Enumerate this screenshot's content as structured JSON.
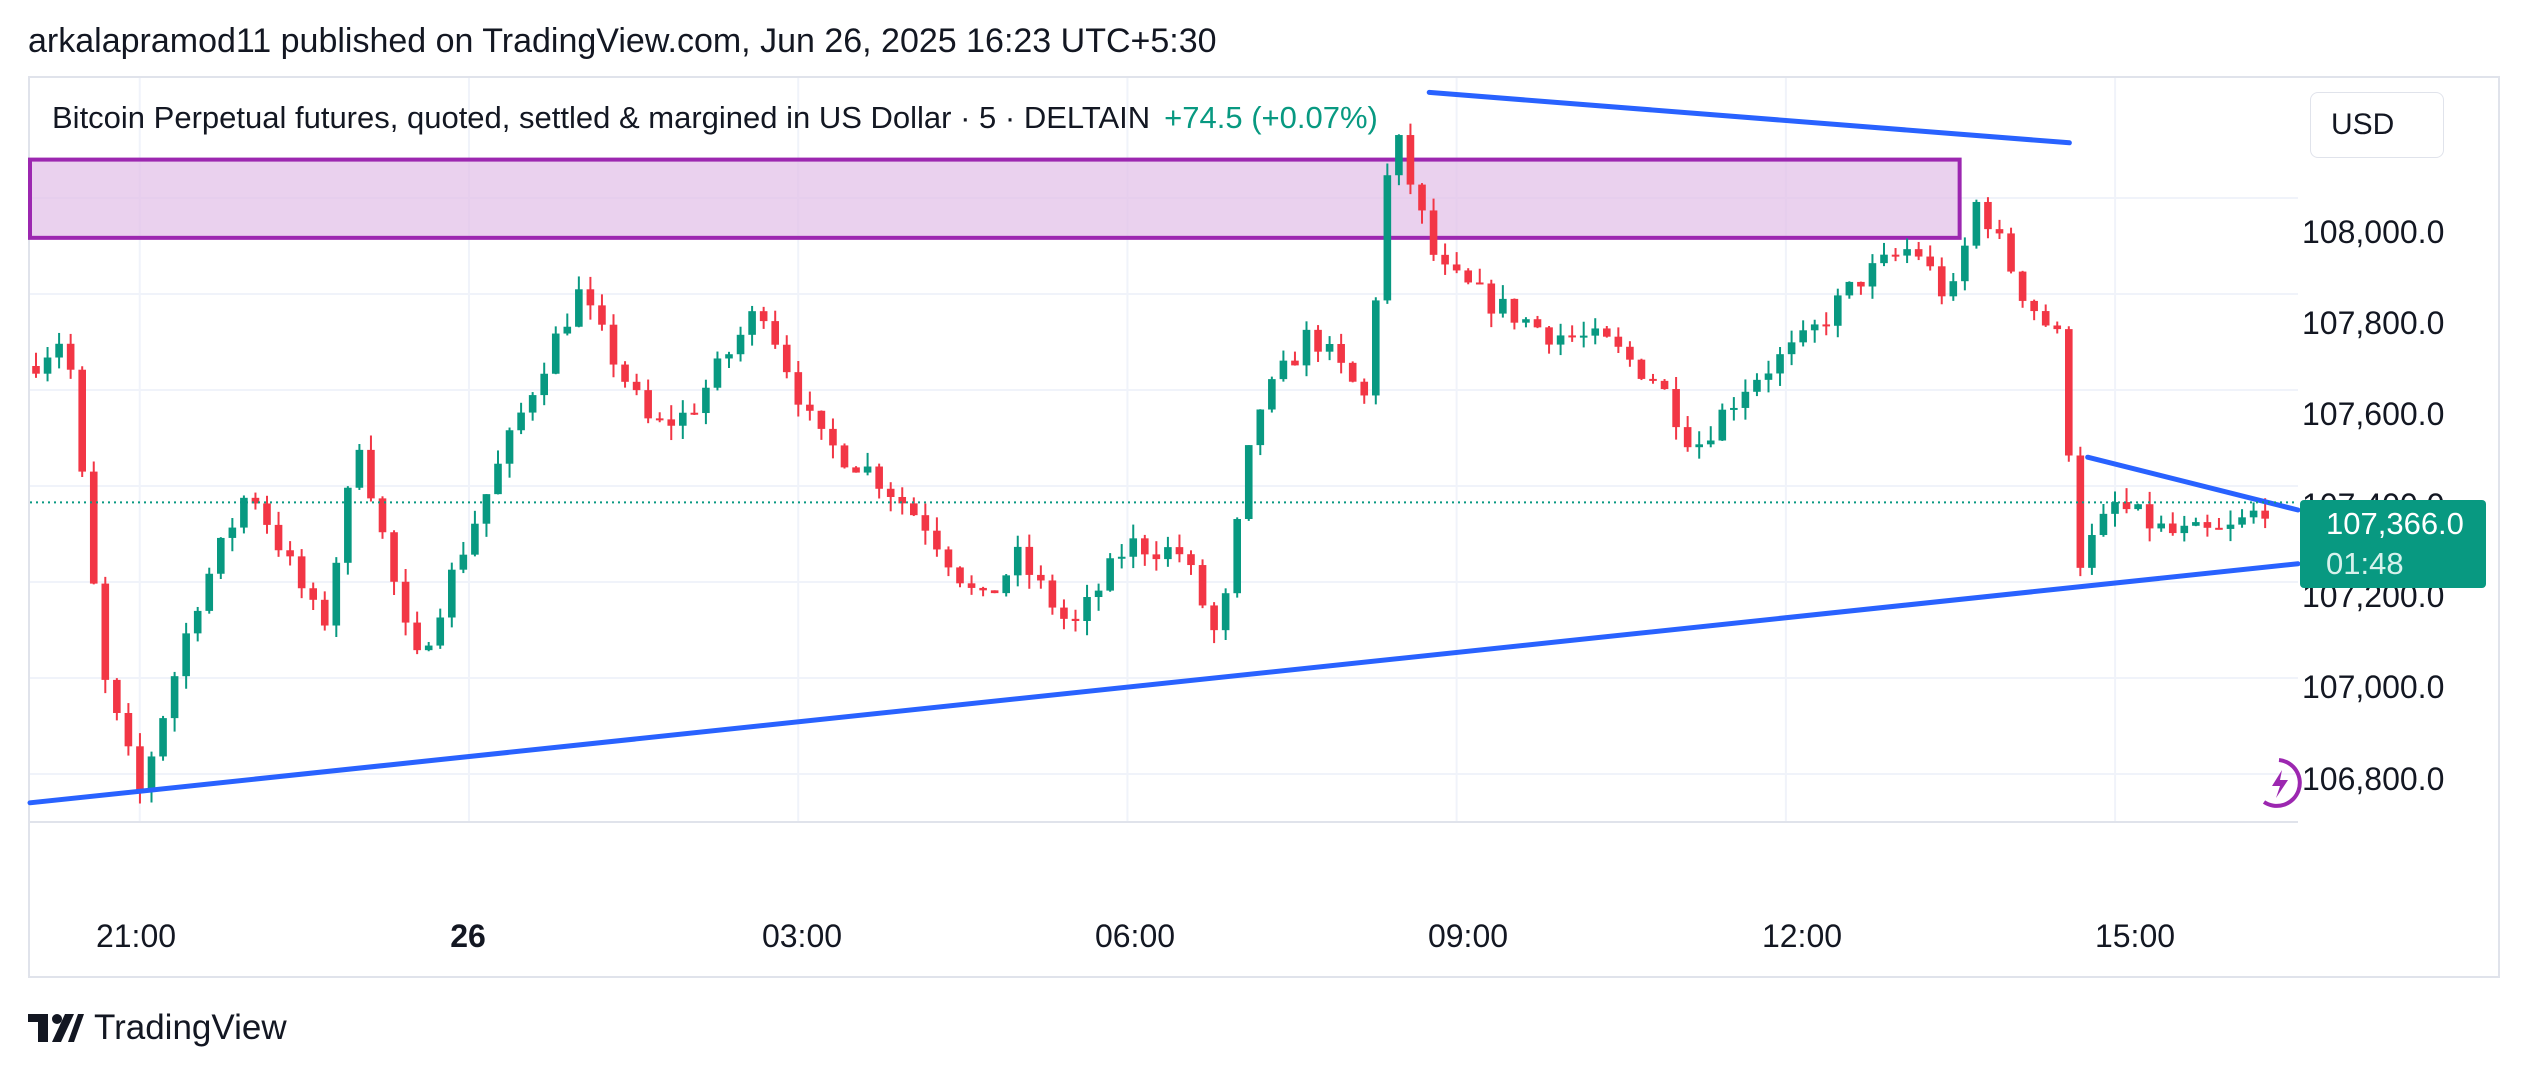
{
  "header": {
    "publisher_text": "arkalapramod11 published on TradingView.com, Jun 26, 2025 16:23 UTC+5:30"
  },
  "legend": {
    "instrument": "Bitcoin Perpetual futures, quoted, settled & margined in US Dollar · 5 · DELTAIN",
    "change": "+74.5 (+0.07%)"
  },
  "currency_button": "USD",
  "price_axis": [
    "108,000.0",
    "107,800.0",
    "107,600.0",
    "107,400.0",
    "107,200.0",
    "107,000.0",
    "106,800.0"
  ],
  "time_axis": [
    {
      "label": "21:00",
      "bold": false
    },
    {
      "label": "26",
      "bold": true
    },
    {
      "label": "03:00",
      "bold": false
    },
    {
      "label": "06:00",
      "bold": false
    },
    {
      "label": "09:00",
      "bold": false
    },
    {
      "label": "12:00",
      "bold": false
    },
    {
      "label": "15:00",
      "bold": false
    }
  ],
  "last_price": {
    "value": "107,366.0",
    "countdown": "01:48"
  },
  "brand": {
    "name": "TradingView"
  },
  "colors": {
    "up": "#089981",
    "down": "#f23645",
    "trendline": "#2962ff",
    "zone_fill": "#e1bee7",
    "zone_border": "#9c27b0",
    "grid": "#f0f3fa",
    "text": "#131722"
  },
  "chart_data": {
    "type": "candlestick",
    "timeframe_minutes": 5,
    "y_range": [
      106700,
      108250
    ],
    "x_range": [
      "2025-06-25 20:00",
      "2025-06-26 16:40"
    ],
    "candles_hourly_path": [
      {
        "t": "20:00",
        "price": 107650
      },
      {
        "t": "20:20",
        "price": 107720
      },
      {
        "t": "20:40",
        "price": 107000
      },
      {
        "t": "21:00",
        "price": 106760
      },
      {
        "t": "21:30",
        "price": 107150
      },
      {
        "t": "22:00",
        "price": 107400
      },
      {
        "t": "22:40",
        "price": 107100
      },
      {
        "t": "23:00",
        "price": 107500
      },
      {
        "t": "23:30",
        "price": 107020
      },
      {
        "t": "00:00",
        "price": 107300
      },
      {
        "t": "00:40",
        "price": 107650
      },
      {
        "t": "01:00",
        "price": 107800
      },
      {
        "t": "01:40",
        "price": 107520
      },
      {
        "t": "02:00",
        "price": 107550
      },
      {
        "t": "02:40",
        "price": 107780
      },
      {
        "t": "03:10",
        "price": 107500
      },
      {
        "t": "03:40",
        "price": 107430
      },
      {
        "t": "04:10",
        "price": 107320
      },
      {
        "t": "04:40",
        "price": 107150
      },
      {
        "t": "05:00",
        "price": 107250
      },
      {
        "t": "05:30",
        "price": 107100
      },
      {
        "t": "06:00",
        "price": 107280
      },
      {
        "t": "06:30",
        "price": 107260
      },
      {
        "t": "06:50",
        "price": 107070
      },
      {
        "t": "07:10",
        "price": 107550
      },
      {
        "t": "07:40",
        "price": 107720
      },
      {
        "t": "08:10",
        "price": 107580
      },
      {
        "t": "08:25",
        "price": 108150
      },
      {
        "t": "08:50",
        "price": 107850
      },
      {
        "t": "09:20",
        "price": 107780
      },
      {
        "t": "09:50",
        "price": 107720
      },
      {
        "t": "10:20",
        "price": 107700
      },
      {
        "t": "10:50",
        "price": 107620
      },
      {
        "t": "11:10",
        "price": 107480
      },
      {
        "t": "11:40",
        "price": 107620
      },
      {
        "t": "12:10",
        "price": 107700
      },
      {
        "t": "12:40",
        "price": 107830
      },
      {
        "t": "13:10",
        "price": 107900
      },
      {
        "t": "13:30",
        "price": 107780
      },
      {
        "t": "13:45",
        "price": 108000
      },
      {
        "t": "14:10",
        "price": 107800
      },
      {
        "t": "14:30",
        "price": 107700
      },
      {
        "t": "14:40",
        "price": 107240
      },
      {
        "t": "15:00",
        "price": 107360
      },
      {
        "t": "15:30",
        "price": 107300
      },
      {
        "t": "16:00",
        "price": 107300
      },
      {
        "t": "16:25",
        "price": 107366
      }
    ],
    "drawings": {
      "zone": {
        "from": "2025-06-25 20:00",
        "to": "2025-06-26 13:35",
        "top": 108080,
        "bottom": 107917
      },
      "lower_trendline": [
        {
          "t": "2025-06-25 20:00",
          "price": 106740
        },
        {
          "t": "2025-06-26 16:40",
          "price": 107238
        }
      ],
      "upper_trendline": [
        {
          "t": "2025-06-26 08:45",
          "price": 108220
        },
        {
          "t": "2025-06-26 14:35",
          "price": 108115
        }
      ],
      "triangle_upper": [
        {
          "t": "2025-06-26 14:45",
          "price": 107460
        },
        {
          "t": "2025-06-26 16:40",
          "price": 107350
        }
      ],
      "last_price_line": 107366
    }
  }
}
